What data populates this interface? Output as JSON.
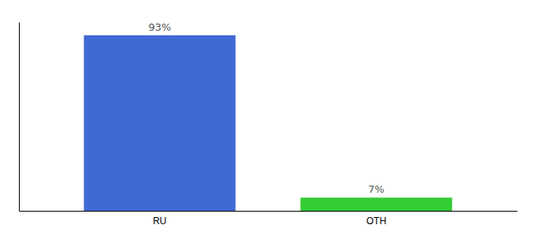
{
  "chart_data": {
    "type": "bar",
    "categories": [
      "RU",
      "OTH"
    ],
    "values": [
      93,
      7
    ],
    "value_labels": [
      "93%",
      "7%"
    ],
    "data_labels": true,
    "colors": [
      "#4169d4",
      "#33cc33"
    ],
    "ylim": [
      0,
      100
    ],
    "grid": false,
    "tick_labels": "x"
  }
}
